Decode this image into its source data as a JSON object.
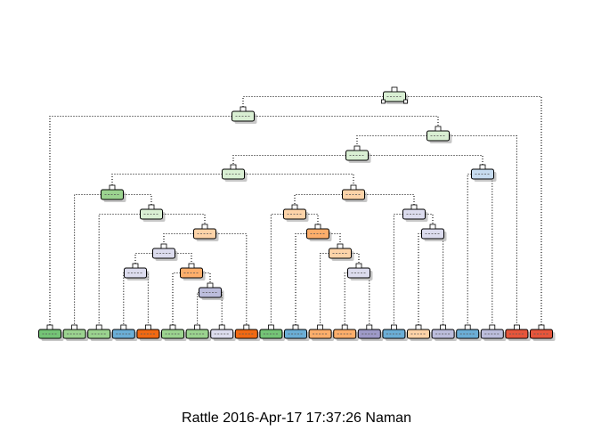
{
  "caption": "Rattle 2016-Apr-17 17:37:26 Naman",
  "colors": {
    "pale_green": "#d9efd3",
    "green": "#9bd38f",
    "dark_green": "#74c476",
    "pale_orange": "#fdd3a8",
    "orange": "#fdae6b",
    "dark_orange": "#f16913",
    "pale_purple": "#dcdcee",
    "purple": "#bcbddc",
    "dark_purple": "#9e9ac8",
    "pale_blue": "#c6dbef",
    "blue": "#6baed6",
    "red_orange": "#e6553b",
    "edge": "#000000",
    "shadow": "#999999"
  },
  "tree": {
    "internal_nodes": [
      {
        "id": 1,
        "fill": "pale_green"
      },
      {
        "id": 2,
        "fill": "pale_green"
      },
      {
        "id": 3,
        "fill": "pale_green"
      },
      {
        "id": 4,
        "fill": "pale_green"
      },
      {
        "id": 5,
        "fill": "pale_green"
      },
      {
        "id": 6,
        "fill": "pale_blue"
      },
      {
        "id": 7,
        "fill": "green"
      },
      {
        "id": 8,
        "fill": "pale_orange"
      },
      {
        "id": 9,
        "fill": "pale_green"
      },
      {
        "id": 10,
        "fill": "pale_orange"
      },
      {
        "id": 11,
        "fill": "pale_purple"
      },
      {
        "id": 12,
        "fill": "pale_orange"
      },
      {
        "id": 13,
        "fill": "orange"
      },
      {
        "id": 14,
        "fill": "pale_purple"
      },
      {
        "id": 15,
        "fill": "pale_purple"
      },
      {
        "id": 16,
        "fill": "pale_orange"
      },
      {
        "id": 17,
        "fill": "pale_purple"
      },
      {
        "id": 18,
        "fill": "orange"
      },
      {
        "id": 19,
        "fill": "pale_purple"
      },
      {
        "id": 20,
        "fill": "purple"
      }
    ],
    "leaves": [
      "dark_green",
      "green",
      "green",
      "blue",
      "dark_orange",
      "green",
      "green",
      "pale_purple",
      "dark_orange",
      "dark_green",
      "blue",
      "orange",
      "orange",
      "dark_purple",
      "blue",
      "pale_orange",
      "purple",
      "blue",
      "purple",
      "red_orange",
      "red_orange"
    ]
  }
}
